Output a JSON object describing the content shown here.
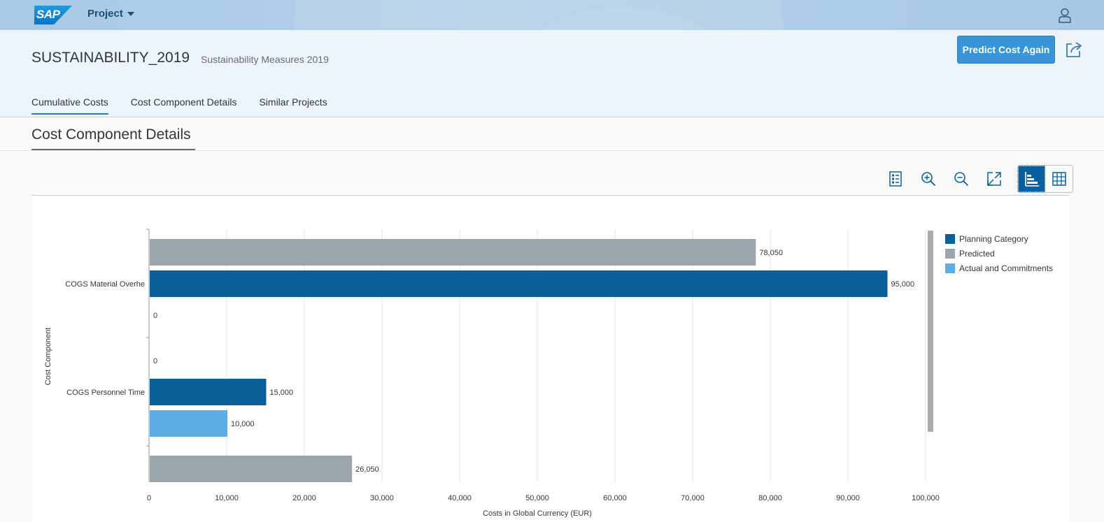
{
  "shell": {
    "logo_text": "SAP",
    "app_title": "Project",
    "user_icon": "person-icon"
  },
  "header": {
    "object_title": "SUSTAINABILITY_2019",
    "object_subtitle": "Sustainability Measures 2019",
    "predict_button": "Predict Cost Again",
    "share_icon": "share-icon",
    "tabs": [
      {
        "label": "Cumulative Costs",
        "active": true
      },
      {
        "label": "Cost Component Details",
        "active": false
      },
      {
        "label": "Similar Projects",
        "active": false
      }
    ]
  },
  "section": {
    "title": "Cost Component Details"
  },
  "toolbar": {
    "icons": [
      "legend-icon",
      "zoom-in-icon",
      "zoom-out-icon",
      "fullscreen-icon",
      "chart-view-icon",
      "table-view-icon"
    ],
    "selected_view": "chart"
  },
  "chart_data": {
    "type": "bar",
    "orientation": "horizontal",
    "xlabel": "Costs in Global Currency (EUR)",
    "ylabel": "Cost Component",
    "xlim": [
      0,
      100000
    ],
    "xticks": [
      "0",
      "10,000",
      "20,000",
      "30,000",
      "40,000",
      "50,000",
      "60,000",
      "70,000",
      "80,000",
      "90,000",
      "100,000"
    ],
    "grid": true,
    "legend_position": "right",
    "series_colors": {
      "Planning Category": "#0a6199",
      "Predicted": "#9aa6ab",
      "Actual and Commitments": "#5dade2"
    },
    "legend": [
      "Planning Category",
      "Predicted",
      "Actual and Commitments"
    ],
    "groups": [
      {
        "category": "COGS Material Overhe",
        "bars": [
          {
            "series": "Predicted",
            "value": 78050,
            "label": "78,050"
          },
          {
            "series": "Planning Category",
            "value": 95000,
            "label": "95,000"
          },
          {
            "series": "Actual and Commitments",
            "value": 0,
            "label": "0"
          }
        ]
      },
      {
        "category": "COGS Personnel Time",
        "bars": [
          {
            "series": "Predicted",
            "value": 0,
            "label": "0"
          },
          {
            "series": "Planning Category",
            "value": 15000,
            "label": "15,000"
          },
          {
            "series": "Actual and Commitments",
            "value": 10000,
            "label": "10,000"
          }
        ]
      },
      {
        "category": "",
        "bars": [
          {
            "series": "Predicted",
            "value": 26050,
            "label": "26,050"
          }
        ]
      }
    ]
  }
}
